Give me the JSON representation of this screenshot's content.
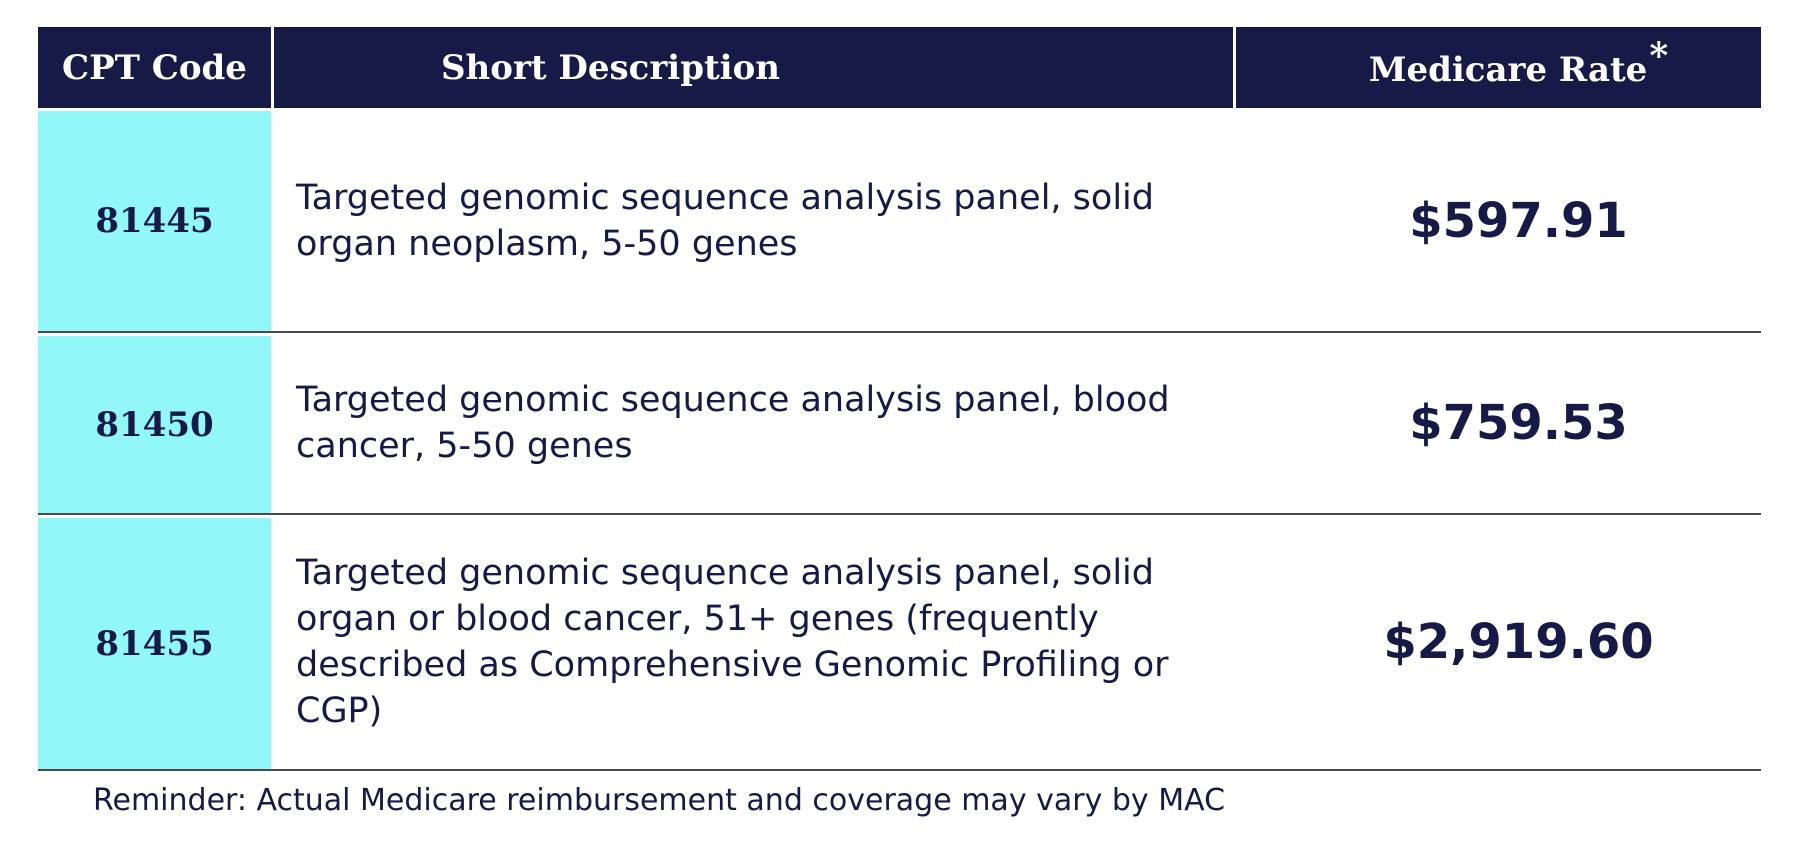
{
  "table": {
    "headers": {
      "code": "CPT Code",
      "description": "Short Description",
      "rate": "Medicare Rate",
      "rate_marker": "*"
    },
    "rows": [
      {
        "code": "81445",
        "description": "Targeted genomic sequence analysis panel, solid organ neoplasm, 5-50 genes",
        "rate": "$597.91"
      },
      {
        "code": "81450",
        "description": "Targeted genomic sequence analysis panel, blood cancer, 5-50 genes",
        "rate": "$759.53"
      },
      {
        "code": "81455",
        "description": "Targeted genomic sequence analysis panel, solid organ or blood cancer, 51+ genes (frequently described as Comprehensive Genomic Profiling or CGP)",
        "rate": "$2,919.60"
      }
    ]
  },
  "footnote": "Reminder: Actual Medicare reimbursement and coverage may vary by MAC",
  "colors": {
    "header_bg": "#171a47",
    "code_cell_bg": "#92f7f8",
    "text": "#171a47"
  }
}
